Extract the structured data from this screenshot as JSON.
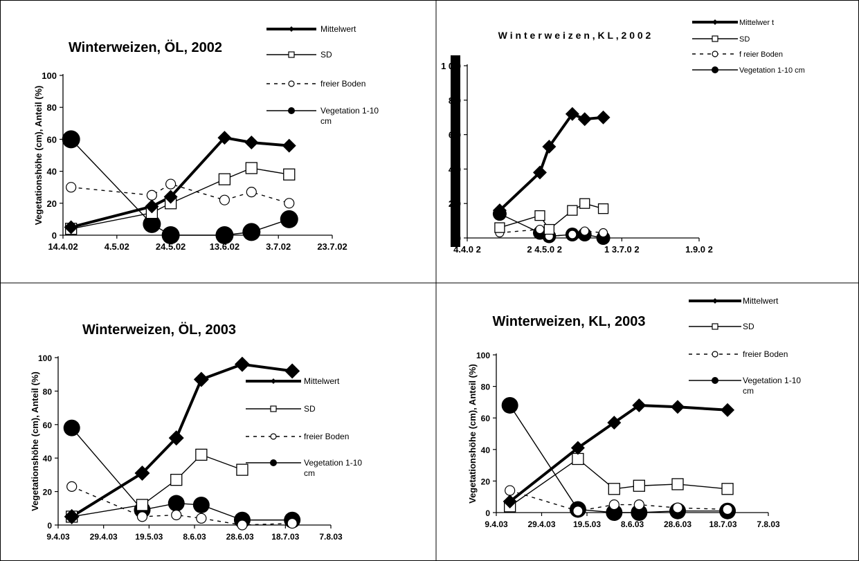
{
  "chart_data": [
    {
      "type": "line",
      "title": "Winterweizen, ÖL, 2002",
      "xlabel": "",
      "ylabel": "Vegetationshöhe (cm), Anteil (%)",
      "ylim": [
        0,
        100
      ],
      "yticks": [
        0,
        20,
        40,
        60,
        80,
        100
      ],
      "xticks": [
        "14.4.02",
        "4.5.02",
        "24.5.02",
        "13.6.02",
        "3.7.02",
        "23.7.02"
      ],
      "series": [
        {
          "name": "Mittelwert",
          "x": [
            "17.4.02",
            "17.5.02",
            "24.5.02",
            "13.6.02",
            "23.6.02",
            "7.7.02"
          ],
          "y": [
            5,
            18,
            24,
            61,
            58,
            56
          ]
        },
        {
          "name": "SD",
          "x": [
            "17.4.02",
            "17.5.02",
            "24.5.02",
            "13.6.02",
            "23.6.02",
            "7.7.02"
          ],
          "y": [
            4,
            14,
            20,
            35,
            42,
            38
          ]
        },
        {
          "name": "freier Boden",
          "x": [
            "17.4.02",
            "17.5.02",
            "24.5.02",
            "13.6.02",
            "23.6.02",
            "7.7.02"
          ],
          "y": [
            30,
            25,
            32,
            22,
            27,
            20
          ]
        },
        {
          "name": "Vegetation 1-10 cm",
          "x": [
            "17.4.02",
            "17.5.02",
            "24.5.02",
            "13.6.02",
            "23.6.02",
            "7.7.02"
          ],
          "y": [
            60,
            7,
            0,
            0,
            2,
            10
          ]
        }
      ],
      "legend": [
        {
          "label": "Mittelwert",
          "style": "thick"
        },
        {
          "label": "SD",
          "style": "open-square"
        },
        {
          "label": "freier Boden",
          "style": "dashed-open-circle"
        },
        {
          "label": "Vegetation 1-10\ncm",
          "style": "filled-circle"
        }
      ],
      "legend_position": "top-right"
    },
    {
      "type": "line",
      "title": "W i n t e r w e i z e n ,  K L ,  2 0 0 2",
      "xlabel": "",
      "ylabel": "",
      "ylim": [
        0,
        100
      ],
      "yticks": [
        0,
        20,
        40,
        60,
        80,
        100
      ],
      "ytick_labels": [
        "0",
        "2 0",
        "4 0",
        "6 0",
        "8 0",
        "1 0 0"
      ],
      "xticks": [
        "4.4.0 2",
        "2 4.5.0 2",
        "1 3.7.0 2",
        "1.9.0 2"
      ],
      "series": [
        {
          "name": "Mittelwert",
          "x": [
            "25.4.02",
            "21.5.02",
            "27.5.02",
            "11.6.02",
            "19.6.02",
            "1.7.02"
          ],
          "y": [
            16,
            38,
            53,
            72,
            69,
            70
          ]
        },
        {
          "name": "SD",
          "x": [
            "25.4.02",
            "21.5.02",
            "27.5.02",
            "11.6.02",
            "19.6.02",
            "1.7.02"
          ],
          "y": [
            6,
            13,
            5,
            16,
            20,
            17
          ]
        },
        {
          "name": "freier Boden",
          "x": [
            "25.4.02",
            "21.5.02",
            "27.5.02",
            "11.6.02",
            "19.6.02",
            "1.7.02"
          ],
          "y": [
            3,
            5,
            1,
            2,
            4,
            3
          ]
        },
        {
          "name": "Vegetation 1-10cm",
          "x": [
            "25.4.02",
            "21.5.02",
            "27.5.02",
            "11.6.02",
            "19.6.02",
            "1.7.02"
          ],
          "y": [
            14,
            3,
            1,
            2,
            2,
            0
          ]
        }
      ],
      "legend": [
        {
          "label": "Mittelwer t",
          "style": "thick"
        },
        {
          "label": "SD",
          "style": "open-square"
        },
        {
          "label": "f reier Boden",
          "style": "dashed-open-circle"
        },
        {
          "label": "Vegetation 1-10 cm",
          "style": "filled-circle"
        }
      ],
      "legend_position": "top-right"
    },
    {
      "type": "line",
      "title": "Winterweizen, ÖL, 2003",
      "xlabel": "",
      "ylabel": "Vegetationshöhe (cm), Anteil (%)",
      "ylim": [
        0,
        100
      ],
      "yticks": [
        0,
        20,
        40,
        60,
        80,
        100
      ],
      "xticks": [
        "9.4.03",
        "29.4.03",
        "19.5.03",
        "8.6.03",
        "28.6.03",
        "18.7.03",
        "7.8.03"
      ],
      "series": [
        {
          "name": "Mittelwert",
          "x": [
            "15.4.03",
            "16.5.03",
            "31.5.03",
            "11.6.03",
            "29.6.03",
            "21.7.03"
          ],
          "y": [
            5,
            31,
            52,
            87,
            96,
            92
          ]
        },
        {
          "name": "SD",
          "x": [
            "15.4.03",
            "16.5.03",
            "31.5.03",
            "11.6.03",
            "29.6.03"
          ],
          "y": [
            5,
            12,
            27,
            42,
            33
          ]
        },
        {
          "name": "freier Boden",
          "x": [
            "15.4.03",
            "16.5.03",
            "31.5.03",
            "11.6.03",
            "29.6.03",
            "21.7.03"
          ],
          "y": [
            23,
            5,
            6,
            4,
            0,
            1
          ]
        },
        {
          "name": "Vegetation 1-10 cm",
          "x": [
            "15.4.03",
            "16.5.03",
            "31.5.03",
            "11.6.03",
            "29.6.03",
            "21.7.03"
          ],
          "y": [
            58,
            9,
            13,
            12,
            3,
            3
          ]
        }
      ],
      "legend": [
        {
          "label": "Mittelwert",
          "style": "thick"
        },
        {
          "label": "SD",
          "style": "open-square"
        },
        {
          "label": "freier Boden",
          "style": "dashed-open-circle"
        },
        {
          "label": "Vegetation 1-10\ncm",
          "style": "filled-circle"
        }
      ],
      "legend_position": "right"
    },
    {
      "type": "line",
      "title": "Winterweizen, KL, 2003",
      "xlabel": "",
      "ylabel": "Vegetationshöhe (cm), Anteil (%)",
      "ylim": [
        0,
        100
      ],
      "yticks": [
        0,
        20,
        40,
        60,
        80,
        100
      ],
      "xticks": [
        "9.4.03",
        "29.4.03",
        "19.5.03",
        "8.6.03",
        "28.6.03",
        "18.7.03",
        "7.8.03"
      ],
      "series": [
        {
          "name": "Mittelwert",
          "x": [
            "15.4.03",
            "15.5.03",
            "31.5.03",
            "11.6.03",
            "28.6.03",
            "20.7.03"
          ],
          "y": [
            7,
            41,
            57,
            68,
            67,
            65
          ]
        },
        {
          "name": "SD",
          "x": [
            "15.4.03",
            "15.5.03",
            "31.5.03",
            "11.6.03",
            "28.6.03",
            "20.7.03"
          ],
          "y": [
            4,
            34,
            15,
            17,
            18,
            15
          ]
        },
        {
          "name": "freier Boden",
          "x": [
            "15.4.03",
            "15.5.03",
            "31.5.03",
            "11.6.03",
            "28.6.03",
            "20.7.03"
          ],
          "y": [
            14,
            1,
            5,
            5,
            3,
            2
          ]
        },
        {
          "name": "Vegetation 1-10 cm",
          "x": [
            "15.4.03",
            "15.5.03",
            "31.5.03",
            "11.6.03",
            "28.6.03",
            "20.7.03"
          ],
          "y": [
            68,
            2,
            0,
            0,
            1,
            1
          ]
        }
      ],
      "legend": [
        {
          "label": "Mittelwert",
          "style": "thick"
        },
        {
          "label": "SD",
          "style": "open-square"
        },
        {
          "label": "freier Boden",
          "style": "dashed-open-circle"
        },
        {
          "label": "Vegetation 1-10\ncm",
          "style": "filled-circle"
        }
      ],
      "legend_position": "top-right"
    }
  ]
}
